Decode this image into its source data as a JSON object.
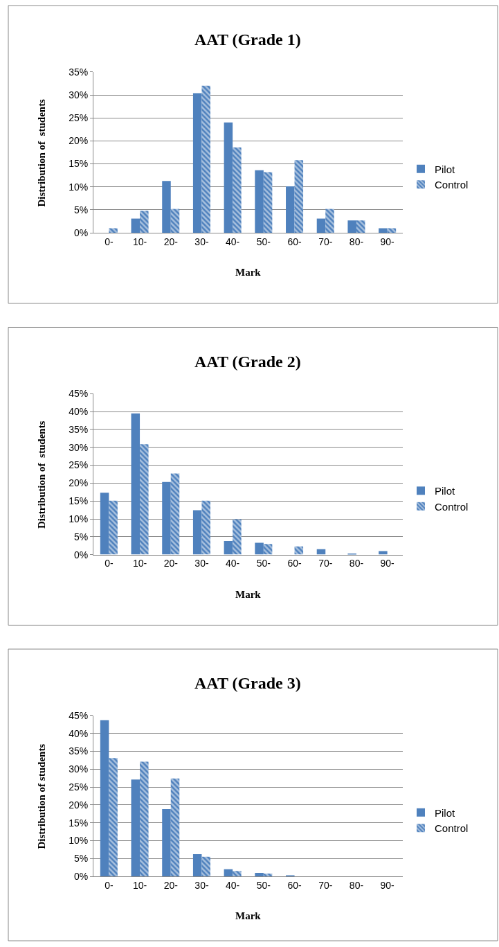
{
  "chart_data": [
    {
      "type": "bar",
      "title": "AAT (Grade 1)",
      "xlabel": "Mark",
      "ylabel": "Distribution of  students",
      "categories": [
        "0-",
        "10-",
        "20-",
        "30-",
        "40-",
        "50-",
        "60-",
        "70-",
        "80-",
        "90-"
      ],
      "series": [
        {
          "name": "Pilot",
          "color": "#4f81bd",
          "values": [
            0,
            3.1,
            11.3,
            30.4,
            24.0,
            13.6,
            10.1,
            3.1,
            2.7,
            1.0
          ]
        },
        {
          "name": "Control",
          "color": "#4f81bd",
          "values": [
            1.0,
            4.8,
            5.2,
            32.0,
            18.6,
            13.2,
            15.8,
            5.2,
            2.7,
            1.0
          ]
        }
      ],
      "ylim": [
        0,
        35
      ],
      "yticks": [
        {
          "value": 0,
          "label": "0%"
        },
        {
          "value": 5,
          "label": "5%"
        },
        {
          "value": 10,
          "label": "10%"
        },
        {
          "value": 15,
          "label": "15%"
        },
        {
          "value": 20,
          "label": "20%"
        },
        {
          "value": 25,
          "label": "25%"
        },
        {
          "value": 30,
          "label": "30%"
        },
        {
          "value": 35,
          "label": "35%"
        }
      ],
      "grid": "y",
      "legend": "right"
    },
    {
      "type": "bar",
      "title": "AAT (Grade 2)",
      "xlabel": "Mark",
      "ylabel": "Distribution of  students",
      "categories": [
        "0-",
        "10-",
        "20-",
        "30-",
        "40-",
        "50-",
        "60-",
        "70-",
        "80-",
        "90-"
      ],
      "series": [
        {
          "name": "Pilot",
          "color": "#4f81bd",
          "values": [
            17.3,
            39.5,
            20.3,
            12.4,
            3.8,
            3.3,
            0,
            1.5,
            0.3,
            1.0
          ]
        },
        {
          "name": "Control",
          "color": "#4f81bd",
          "values": [
            15.1,
            30.9,
            22.7,
            15.1,
            9.9,
            3.0,
            2.3,
            0,
            0,
            0
          ]
        }
      ],
      "ylim": [
        0,
        45
      ],
      "yticks": [
        {
          "value": 0,
          "label": "0%"
        },
        {
          "value": 5,
          "label": "5%"
        },
        {
          "value": 10,
          "label": "10%"
        },
        {
          "value": 15,
          "label": "15%"
        },
        {
          "value": 20,
          "label": "20%"
        },
        {
          "value": 25,
          "label": "25%"
        },
        {
          "value": 30,
          "label": "30%"
        },
        {
          "value": 35,
          "label": "35%"
        },
        {
          "value": 40,
          "label": "40%"
        },
        {
          "value": 45,
          "label": "45%"
        }
      ],
      "grid": "y",
      "legend": "right"
    },
    {
      "type": "bar",
      "title": "AAT (Grade 3)",
      "xlabel": "Mark",
      "ylabel": "Distribution of students",
      "categories": [
        "0-",
        "10-",
        "20-",
        "30-",
        "40-",
        "50-",
        "60-",
        "70-",
        "80-",
        "90-"
      ],
      "series": [
        {
          "name": "Pilot",
          "color": "#4f81bd",
          "values": [
            43.7,
            27.1,
            18.8,
            6.2,
            2.0,
            1.0,
            0.3,
            0,
            0,
            0
          ]
        },
        {
          "name": "Control",
          "color": "#4f81bd",
          "values": [
            33.1,
            32.1,
            27.4,
            5.5,
            1.5,
            0.8,
            0,
            0,
            0,
            0
          ]
        }
      ],
      "ylim": [
        0,
        45
      ],
      "yticks": [
        {
          "value": 0,
          "label": "0%"
        },
        {
          "value": 5,
          "label": "5%"
        },
        {
          "value": 10,
          "label": "10%"
        },
        {
          "value": 15,
          "label": "15%"
        },
        {
          "value": 20,
          "label": "20%"
        },
        {
          "value": 25,
          "label": "25%"
        },
        {
          "value": 30,
          "label": "30%"
        },
        {
          "value": 35,
          "label": "35%"
        },
        {
          "value": 40,
          "label": "40%"
        },
        {
          "value": 45,
          "label": "45%"
        }
      ],
      "grid": "y",
      "legend": "right"
    }
  ]
}
